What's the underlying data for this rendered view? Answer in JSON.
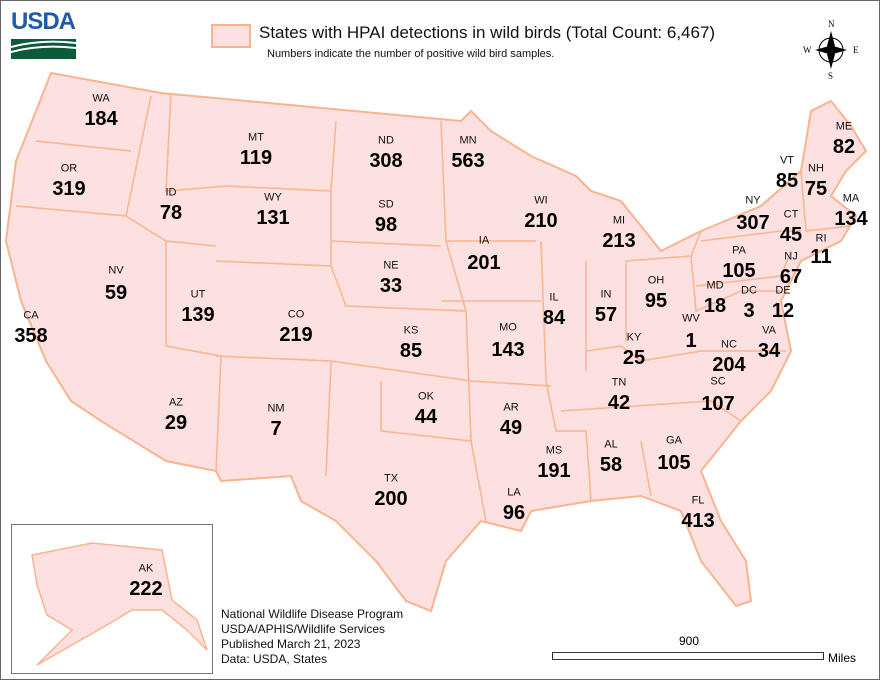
{
  "header": {
    "logo": "USDA",
    "legend_title": "States with HPAI detections in wild birds (Total Count: 6,467)",
    "legend_subtitle": "Numbers indicate the number of positive wild bird samples.",
    "fill_color": "#fde0e0",
    "border_color": "#f9b48f"
  },
  "compass": {
    "n": "N",
    "s": "S",
    "e": "E",
    "w": "W"
  },
  "states": [
    {
      "abbr": "WA",
      "count": "184"
    },
    {
      "abbr": "OR",
      "count": "319"
    },
    {
      "abbr": "CA",
      "count": "358"
    },
    {
      "abbr": "NV",
      "count": "59"
    },
    {
      "abbr": "ID",
      "count": "78"
    },
    {
      "abbr": "MT",
      "count": "119"
    },
    {
      "abbr": "WY",
      "count": "131"
    },
    {
      "abbr": "UT",
      "count": "139"
    },
    {
      "abbr": "AZ",
      "count": "29"
    },
    {
      "abbr": "CO",
      "count": "219"
    },
    {
      "abbr": "NM",
      "count": "7"
    },
    {
      "abbr": "ND",
      "count": "308"
    },
    {
      "abbr": "SD",
      "count": "98"
    },
    {
      "abbr": "NE",
      "count": "33"
    },
    {
      "abbr": "KS",
      "count": "85"
    },
    {
      "abbr": "OK",
      "count": "44"
    },
    {
      "abbr": "TX",
      "count": "200"
    },
    {
      "abbr": "MN",
      "count": "563"
    },
    {
      "abbr": "IA",
      "count": "201"
    },
    {
      "abbr": "MO",
      "count": "143"
    },
    {
      "abbr": "AR",
      "count": "49"
    },
    {
      "abbr": "LA",
      "count": "96"
    },
    {
      "abbr": "WI",
      "count": "210"
    },
    {
      "abbr": "IL",
      "count": "84"
    },
    {
      "abbr": "MI",
      "count": "213"
    },
    {
      "abbr": "IN",
      "count": "57"
    },
    {
      "abbr": "OH",
      "count": "95"
    },
    {
      "abbr": "KY",
      "count": "25"
    },
    {
      "abbr": "TN",
      "count": "42"
    },
    {
      "abbr": "MS",
      "count": "191"
    },
    {
      "abbr": "AL",
      "count": "58"
    },
    {
      "abbr": "GA",
      "count": "105"
    },
    {
      "abbr": "FL",
      "count": "413"
    },
    {
      "abbr": "SC",
      "count": "107"
    },
    {
      "abbr": "NC",
      "count": "204"
    },
    {
      "abbr": "VA",
      "count": "34"
    },
    {
      "abbr": "WV",
      "count": "1"
    },
    {
      "abbr": "MD",
      "count": "18"
    },
    {
      "abbr": "DC",
      "count": "3"
    },
    {
      "abbr": "DE",
      "count": "12"
    },
    {
      "abbr": "PA",
      "count": "105"
    },
    {
      "abbr": "NJ",
      "count": "67"
    },
    {
      "abbr": "NY",
      "count": "307"
    },
    {
      "abbr": "CT",
      "count": "45"
    },
    {
      "abbr": "RI",
      "count": "11"
    },
    {
      "abbr": "MA",
      "count": "134"
    },
    {
      "abbr": "VT",
      "count": "85"
    },
    {
      "abbr": "NH",
      "count": "75"
    },
    {
      "abbr": "ME",
      "count": "82"
    },
    {
      "abbr": "AK",
      "count": "222"
    }
  ],
  "credits": [
    "National Wildlife Disease Program",
    "USDA/APHIS/Wildlife Services",
    "Published March 21, 2023",
    "Data: USDA, States"
  ],
  "scale": {
    "value": "900",
    "unit": "Miles"
  }
}
